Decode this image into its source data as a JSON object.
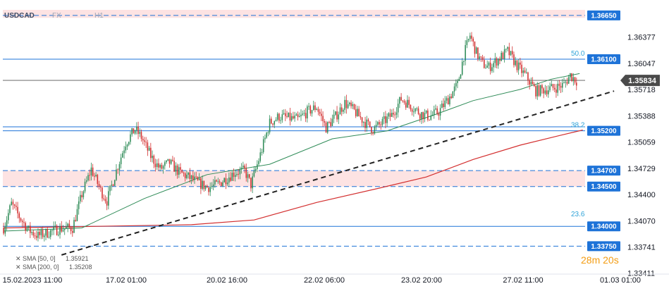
{
  "header": {
    "symbol": "USDCAD",
    "market": "FX",
    "timeframe": "H1"
  },
  "countdown": "28m 20s",
  "legend": [
    {
      "label": "SMA [50, 0]",
      "value": "1.35921",
      "color": "#2e8b57"
    },
    {
      "label": "SMA [200, 0]",
      "value": "1.35208",
      "color": "#d32f2f"
    }
  ],
  "colors": {
    "bull": "#2e8b57",
    "bear": "#d32f2f",
    "level": "#1e73d8",
    "zone": "#fde3e3",
    "trendline": "#222222",
    "current": "#555555"
  },
  "chart_data": {
    "type": "candlestick",
    "ylim": [
      1.3332,
      1.3672
    ],
    "y_ticks": [
      "1.36377",
      "1.36047",
      "1.35718",
      "1.35388",
      "1.35059",
      "1.34729",
      "1.34400",
      "1.34070",
      "1.33741",
      "1.33411"
    ],
    "x_ticks": [
      "15.02.2023  11:00",
      "17.02  01:00",
      "20.02  16:00",
      "22.02  06:00",
      "23.02  20:00",
      "27.02  11:00",
      "01.03  01:00"
    ],
    "current_price": "1.35834",
    "levels": [
      {
        "price": 1.3665,
        "label": "1.36650"
      },
      {
        "price": 1.361,
        "label": "1.36100"
      },
      {
        "price": 1.352,
        "label": "1.35200"
      },
      {
        "price": 1.347,
        "label": "1.34700"
      },
      {
        "price": 1.345,
        "label": "1.34500"
      },
      {
        "price": 1.34,
        "label": "1.34000"
      },
      {
        "price": 1.3375,
        "label": "1.33750"
      }
    ],
    "fibonacci": [
      {
        "ratio": "50.0",
        "price": 1.361
      },
      {
        "ratio": "38.2",
        "price": 1.352
      },
      {
        "ratio": "23.6",
        "price": 1.3408
      }
    ],
    "resistance_zones": [
      [
        1.3662,
        1.3672
      ],
      [
        1.345,
        1.347
      ]
    ],
    "close_path": [
      [
        0,
        1.3398
      ],
      [
        5,
        1.3428
      ],
      [
        10,
        1.3412
      ],
      [
        16,
        1.3395
      ],
      [
        22,
        1.3388
      ],
      [
        28,
        1.3392
      ],
      [
        36,
        1.3397
      ],
      [
        44,
        1.3398
      ],
      [
        50,
        1.344
      ],
      [
        56,
        1.3472
      ],
      [
        62,
        1.3445
      ],
      [
        66,
        1.3432
      ],
      [
        72,
        1.347
      ],
      [
        78,
        1.3505
      ],
      [
        84,
        1.3522
      ],
      [
        88,
        1.3512
      ],
      [
        94,
        1.3488
      ],
      [
        100,
        1.3472
      ],
      [
        106,
        1.348
      ],
      [
        112,
        1.3468
      ],
      [
        118,
        1.3462
      ],
      [
        124,
        1.3455
      ],
      [
        130,
        1.3449
      ],
      [
        136,
        1.3452
      ],
      [
        142,
        1.346
      ],
      [
        148,
        1.3468
      ],
      [
        154,
        1.347
      ],
      [
        158,
        1.3452
      ],
      [
        164,
        1.349
      ],
      [
        170,
        1.353
      ],
      [
        176,
        1.3538
      ],
      [
        182,
        1.3536
      ],
      [
        188,
        1.3534
      ],
      [
        194,
        1.3544
      ],
      [
        200,
        1.355
      ],
      [
        206,
        1.3524
      ],
      [
        212,
        1.3538
      ],
      [
        218,
        1.3555
      ],
      [
        224,
        1.3545
      ],
      [
        230,
        1.3532
      ],
      [
        236,
        1.3522
      ],
      [
        242,
        1.353
      ],
      [
        248,
        1.354
      ],
      [
        254,
        1.356
      ],
      [
        260,
        1.3552
      ],
      [
        266,
        1.3542
      ],
      [
        272,
        1.3538
      ],
      [
        278,
        1.3544
      ],
      [
        284,
        1.356
      ],
      [
        290,
        1.3578
      ],
      [
        294,
        1.3615
      ],
      [
        298,
        1.364
      ],
      [
        302,
        1.3618
      ],
      [
        306,
        1.3604
      ],
      [
        310,
        1.36
      ],
      [
        316,
        1.361
      ],
      [
        322,
        1.362
      ],
      [
        328,
        1.3602
      ],
      [
        334,
        1.3588
      ],
      [
        340,
        1.357
      ],
      [
        346,
        1.3572
      ],
      [
        352,
        1.3574
      ],
      [
        358,
        1.3578
      ],
      [
        362,
        1.359
      ],
      [
        366,
        1.3583
      ]
    ],
    "sma50": [
      [
        0,
        1.3394
      ],
      [
        50,
        1.3398
      ],
      [
        90,
        1.3435
      ],
      [
        130,
        1.3465
      ],
      [
        170,
        1.3478
      ],
      [
        210,
        1.351
      ],
      [
        245,
        1.352
      ],
      [
        275,
        1.354
      ],
      [
        300,
        1.3558
      ],
      [
        330,
        1.3572
      ],
      [
        350,
        1.3585
      ],
      [
        368,
        1.3592
      ]
    ],
    "sma200": [
      [
        0,
        1.3398
      ],
      [
        60,
        1.34
      ],
      [
        120,
        1.3402
      ],
      [
        160,
        1.3408
      ],
      [
        200,
        1.343
      ],
      [
        240,
        1.3448
      ],
      [
        270,
        1.3462
      ],
      [
        300,
        1.3484
      ],
      [
        330,
        1.3502
      ],
      [
        355,
        1.3514
      ],
      [
        370,
        1.3521
      ]
    ],
    "trendline": [
      [
        37,
        1.3364
      ],
      [
        390,
        1.357
      ]
    ]
  }
}
